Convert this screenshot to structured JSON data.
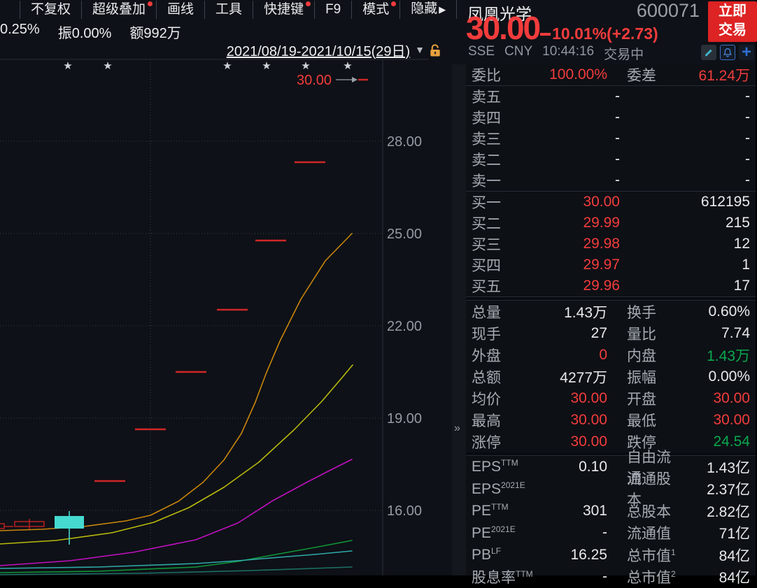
{
  "colors": {
    "up_red": "#f23c3c",
    "down_green": "#0aa84e",
    "accent_blue": "#2f6fd6",
    "button_red": "#dd2323",
    "lock_orange": "#e8a33d",
    "candle_cyan": "#45d9d0",
    "dash_red": "#cf2727",
    "hollow_red": "#c32222",
    "ma_orange": "#c8860b",
    "ma_yellow": "#b9b90d",
    "ma_magenta": "#bf10bf",
    "ma_green": "#0f9638",
    "ma_cyan": "#2fa9a9",
    "ma_deepteal": "#1c6f62",
    "grid": "#3a4049",
    "axis": "#2a2e39",
    "tick_text": "#959ba3",
    "star": "#cfd2d6",
    "arrow_gray": "#9aa0a6"
  },
  "icons": {
    "edit": "pencil-icon",
    "alert": "bell-icon",
    "add": "plus-icon",
    "lock": "unlock-icon",
    "collapse": "»",
    "caret": "▼",
    "menu_arrow": "▶",
    "star": "★"
  },
  "header": {
    "menu_items": [
      {
        "label": "不复权",
        "badge": false
      },
      {
        "label": "超级叠加",
        "badge": true
      },
      {
        "label": "画线",
        "badge": false
      },
      {
        "label": "工具",
        "badge": false
      },
      {
        "label": "快捷键",
        "badge": true
      },
      {
        "label": "F9",
        "badge": false
      },
      {
        "label": "模式",
        "badge": true
      },
      {
        "label": "隐藏",
        "badge": false,
        "arrow": "▶"
      }
    ],
    "stats_row": [
      "0.25%",
      "振0.00%",
      "额992万"
    ]
  },
  "quote": {
    "name": "凤凰光学",
    "code": "600071",
    "trade_button_line1": "立即",
    "trade_button_line2": "交易",
    "price": "30.00",
    "change_percent": "10.01%",
    "change_amount": "(+2.73)",
    "exchange": "SSE",
    "currency": "CNY",
    "time": "10:44:16",
    "status": "交易中",
    "plus_glyph": "+"
  },
  "panel": {
    "weibi": {
      "label1": "委比",
      "value1": "100.00%",
      "label2": "委差",
      "value2": "61.24万"
    },
    "asks": [
      {
        "label": "卖五",
        "price": "-",
        "volume": "-"
      },
      {
        "label": "卖四",
        "price": "-",
        "volume": "-"
      },
      {
        "label": "卖三",
        "price": "-",
        "volume": "-"
      },
      {
        "label": "卖二",
        "price": "-",
        "volume": "-"
      },
      {
        "label": "卖一",
        "price": "-",
        "volume": "-"
      }
    ],
    "bids": [
      {
        "label": "买一",
        "price": "30.00",
        "volume": "612195"
      },
      {
        "label": "买二",
        "price": "29.99",
        "volume": "215"
      },
      {
        "label": "买三",
        "price": "29.98",
        "volume": "12"
      },
      {
        "label": "买四",
        "price": "29.97",
        "volume": "1"
      },
      {
        "label": "买五",
        "price": "29.96",
        "volume": "17"
      }
    ],
    "stats": [
      {
        "label1": "总量",
        "value1": "1.43万",
        "v1c": "val",
        "label2": "换手",
        "value2": "0.60%",
        "v2c": "val"
      },
      {
        "label1": "现手",
        "value1": "27",
        "v1c": "val",
        "label2": "量比",
        "value2": "7.74",
        "v2c": "val"
      },
      {
        "label1": "外盘",
        "value1": "0",
        "v1c": "red",
        "label2": "内盘",
        "value2": "1.43万",
        "v2c": "green"
      },
      {
        "label1": "总额",
        "value1": "4277万",
        "v1c": "val",
        "label2": "振幅",
        "value2": "0.00%",
        "v2c": "val"
      },
      {
        "label1": "均价",
        "value1": "30.00",
        "v1c": "red",
        "label2": "开盘",
        "value2": "30.00",
        "v2c": "red"
      },
      {
        "label1": "最高",
        "value1": "30.00",
        "v1c": "red",
        "label2": "最低",
        "value2": "30.00",
        "v2c": "red"
      },
      {
        "label1": "涨停",
        "value1": "30.00",
        "v1c": "red",
        "label2": "跌停",
        "value2": "24.54",
        "v2c": "green"
      }
    ],
    "fundamentals": [
      {
        "label1": "EPS",
        "sup1": "TTM",
        "value1": "0.10",
        "label2": "自由流通",
        "sup2": "",
        "value2": "1.43亿"
      },
      {
        "label1": "EPS",
        "sup1": "2021E",
        "value1": "",
        "label2": "流通股本",
        "sup2": "",
        "value2": "2.37亿"
      },
      {
        "label1": "PE",
        "sup1": "TTM",
        "value1": "301",
        "label2": "总股本",
        "sup2": "",
        "value2": "2.82亿"
      },
      {
        "label1": "PE",
        "sup1": "2021E",
        "value1": "-",
        "label2": "流通值",
        "sup2": "",
        "value2": "71亿"
      },
      {
        "label1": "PB",
        "sup1": "LF",
        "value1": "16.25",
        "label2": "总市值",
        "sup2": "1",
        "value2": "84亿"
      },
      {
        "label1": "股息率",
        "sup1": "TTM",
        "value1": "-",
        "label2": "总市值",
        "sup2": "2",
        "value2": "84亿"
      }
    ]
  },
  "chart_data": {
    "type": "candlestick",
    "date_range": "2021/08/19-2021/10/15(29日)",
    "current_price_label": "30.00",
    "y_axis": {
      "ticks": [
        "28.00",
        "25.00",
        "22.00",
        "19.00",
        "16.00"
      ],
      "tick_prices": [
        28,
        25,
        22,
        19,
        16
      ]
    },
    "limit_up_closes": [
      16.93,
      18.63,
      20.49,
      22.54,
      24.79,
      27.27,
      30.0
    ],
    "legend_note": "red dashes = one-price limit-up days; cyan candle = down day; curves = moving averages",
    "render": {
      "plot": {
        "top": 85,
        "axis_x": 547,
        "label_x": 553,
        "right_edge": 612,
        "bottom": 823,
        "vline_x": 215
      },
      "y_ticks": [
        {
          "label": "28.00",
          "y": 202
        },
        {
          "label": "25.00",
          "y": 334
        },
        {
          "label": "22.00",
          "y": 466
        },
        {
          "label": "19.00",
          "y": 598
        },
        {
          "label": "16.00",
          "y": 730
        }
      ],
      "stars": {
        "y": 99,
        "x": [
          97,
          154,
          325,
          381,
          437,
          497
        ]
      },
      "annotation": {
        "text": "30.00",
        "x": 424,
        "y": 121,
        "arrow": [
          480,
          114,
          503,
          114
        ],
        "tick": [
          512,
          114,
          526,
          114
        ]
      },
      "dash_half_width": 22,
      "dashes": [
        {
          "x": 443,
          "y": 232
        },
        {
          "x": 387,
          "y": 344
        },
        {
          "x": 332,
          "y": 443
        },
        {
          "x": 273,
          "y": 532
        },
        {
          "x": 215,
          "y": 614
        },
        {
          "x": 157,
          "y": 688
        }
      ],
      "candles": {
        "hollow": [
          {
            "x": -10,
            "y": 749,
            "w": 16,
            "h": 7
          },
          {
            "x": 21,
            "y": 746,
            "w": 42,
            "h": 7
          }
        ],
        "hollow_wick": [
          42,
          742,
          42,
          757
        ],
        "connector": [
          6,
          753,
          19,
          753
        ],
        "filled": {
          "x": 78,
          "y": 738,
          "w": 42,
          "h": 18
        },
        "filled_wick": [
          99,
          731,
          99,
          779
        ]
      },
      "lines": [
        {
          "name": "ma-orange",
          "color": "ma_orange",
          "points": [
            [
              0,
              759
            ],
            [
              60,
              757
            ],
            [
              120,
              753
            ],
            [
              180,
              745
            ],
            [
              215,
              737
            ],
            [
              255,
              717
            ],
            [
              290,
              690
            ],
            [
              320,
              658
            ],
            [
              345,
              620
            ],
            [
              365,
              575
            ],
            [
              380,
              535
            ],
            [
              400,
              488
            ],
            [
              430,
              428
            ],
            [
              465,
              373
            ],
            [
              503,
              334
            ]
          ]
        },
        {
          "name": "ma-yellow",
          "color": "ma_yellow",
          "points": [
            [
              0,
              778
            ],
            [
              80,
              773
            ],
            [
              160,
              762
            ],
            [
              220,
              747
            ],
            [
              270,
              726
            ],
            [
              320,
              697
            ],
            [
              370,
              661
            ],
            [
              420,
              615
            ],
            [
              460,
              574
            ],
            [
              489,
              540
            ],
            [
              504,
              522
            ]
          ]
        },
        {
          "name": "ma-magenta",
          "color": "ma_magenta",
          "points": [
            [
              0,
              809
            ],
            [
              100,
              802
            ],
            [
              190,
              790
            ],
            [
              280,
              772
            ],
            [
              340,
              748
            ],
            [
              390,
              716
            ],
            [
              440,
              689
            ],
            [
              475,
              671
            ],
            [
              503,
              657
            ]
          ]
        },
        {
          "name": "ma-green",
          "color": "ma_green",
          "points": [
            [
              0,
              819
            ],
            [
              140,
              817
            ],
            [
              280,
              811
            ],
            [
              340,
              803
            ],
            [
              400,
              792
            ],
            [
              450,
              783
            ],
            [
              503,
              773
            ]
          ]
        },
        {
          "name": "ma-cyan",
          "color": "ma_cyan",
          "points": [
            [
              0,
              813
            ],
            [
              140,
              811
            ],
            [
              280,
              806
            ],
            [
              340,
              802
            ],
            [
              400,
              797
            ],
            [
              450,
              793
            ],
            [
              503,
              788
            ]
          ]
        },
        {
          "name": "ma-deepteal",
          "color": "ma_deepteal",
          "points": [
            [
              0,
              822
            ],
            [
              200,
              820
            ],
            [
              360,
              816
            ],
            [
              503,
              811
            ]
          ]
        }
      ]
    }
  }
}
